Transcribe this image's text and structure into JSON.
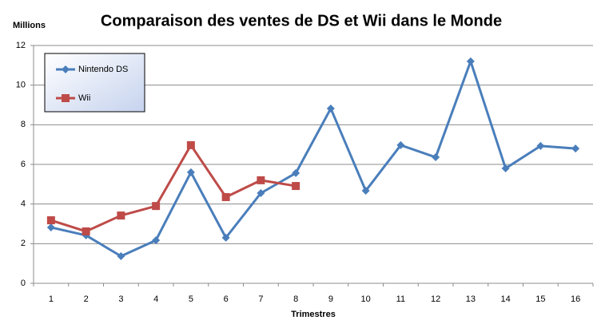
{
  "chart_data": {
    "type": "line",
    "title": "Comparaison des ventes de DS et Wii dans le Monde",
    "y_label": "Millions",
    "x_label": "Trimestres",
    "categories": [
      "1",
      "2",
      "3",
      "4",
      "5",
      "6",
      "7",
      "8",
      "9",
      "10",
      "11",
      "12",
      "13",
      "14",
      "15",
      "16"
    ],
    "series": [
      {
        "name": "Nintendo DS",
        "color": "#4a7ebb",
        "marker": "diamond",
        "values": [
          2.82,
          2.42,
          1.37,
          2.17,
          5.6,
          2.3,
          4.55,
          5.56,
          8.82,
          4.67,
          6.97,
          6.36,
          11.2,
          5.8,
          6.93,
          6.8
        ]
      },
      {
        "name": "Wii",
        "color": "#be4b48",
        "marker": "square",
        "values": [
          3.18,
          2.62,
          3.42,
          3.9,
          6.97,
          4.35,
          5.2,
          4.91,
          null,
          null,
          null,
          null,
          null,
          null,
          null,
          null
        ]
      }
    ],
    "ylim": [
      0,
      12
    ],
    "yticks": [
      0,
      2,
      4,
      6,
      8,
      10,
      12
    ],
    "grid": true,
    "legend": "upper left"
  }
}
